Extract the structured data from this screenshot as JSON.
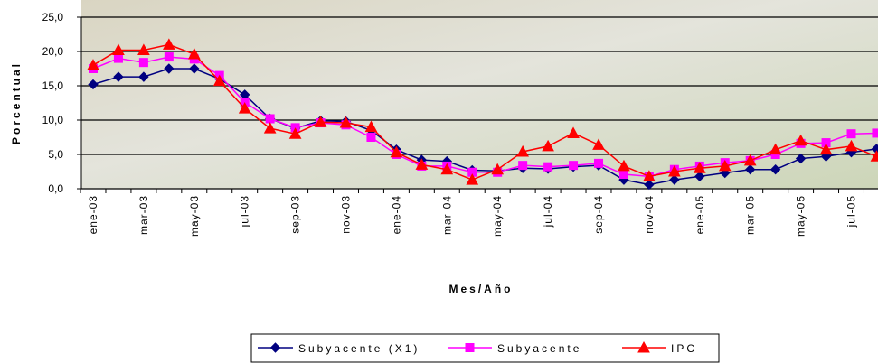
{
  "chart_data": {
    "type": "line",
    "y_label": "Porcentual",
    "x_label": "Mes/Año",
    "categories": [
      "ene-03",
      null,
      "mar-03",
      null,
      "may-03",
      null,
      "jul-03",
      null,
      "sep-03",
      null,
      "nov-03",
      null,
      "ene-04",
      null,
      "mar-04",
      null,
      "may-04",
      null,
      "jul-04",
      null,
      "sep-04",
      null,
      "nov-04",
      null,
      "ene-05",
      null,
      "mar-05",
      null,
      "may-05",
      null,
      "jul-05",
      null
    ],
    "series": [
      {
        "name": "Subyacente (X1)",
        "color": "#000080",
        "marker": "diamond",
        "values": [
          15.2,
          16.3,
          16.3,
          17.5,
          17.5,
          16.0,
          13.7,
          10.2,
          8.8,
          9.9,
          9.8,
          8.5,
          5.7,
          4.2,
          4.0,
          2.7,
          2.6,
          3.0,
          2.9,
          3.2,
          3.4,
          1.3,
          0.6,
          1.3,
          1.8,
          2.3,
          2.8,
          2.8,
          4.4,
          4.7,
          5.3,
          5.8
        ]
      },
      {
        "name": "Subyacente",
        "color": "#ff00ff",
        "marker": "square",
        "values": [
          17.5,
          19.0,
          18.4,
          19.2,
          18.9,
          16.5,
          12.6,
          10.2,
          8.9,
          9.6,
          9.3,
          7.5,
          5.0,
          3.3,
          3.3,
          2.4,
          2.4,
          3.4,
          3.2,
          3.4,
          3.7,
          2.1,
          1.8,
          2.8,
          3.3,
          3.8,
          4.1,
          5.0,
          6.6,
          6.7,
          8.0,
          8.1
        ]
      },
      {
        "name": "IPC",
        "color": "#ff0000",
        "marker": "triangle",
        "values": [
          18.0,
          20.2,
          20.2,
          21.0,
          19.6,
          15.7,
          11.7,
          8.8,
          8.0,
          9.7,
          9.6,
          9.0,
          5.3,
          3.5,
          2.8,
          1.3,
          2.8,
          5.4,
          6.2,
          8.1,
          6.4,
          3.3,
          1.8,
          2.5,
          3.0,
          3.3,
          4.1,
          5.7,
          7.0,
          5.7,
          6.2,
          4.7
        ]
      }
    ],
    "ylim": [
      0,
      25
    ],
    "yticks": [
      {
        "value": 0,
        "label": "0,0"
      },
      {
        "value": 5,
        "label": "5,0"
      },
      {
        "value": 10,
        "label": "10,0"
      },
      {
        "value": 15,
        "label": "15,0"
      },
      {
        "value": 20,
        "label": "20,0"
      },
      {
        "value": 25,
        "label": "25,0"
      }
    ],
    "grid": true
  }
}
